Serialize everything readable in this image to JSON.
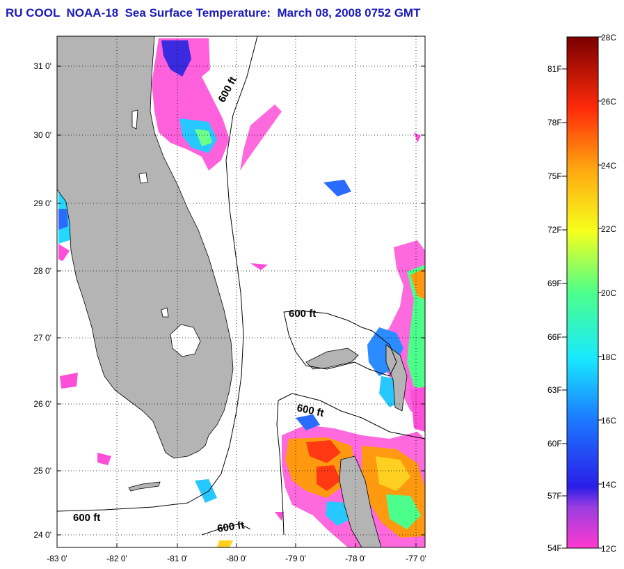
{
  "header": {
    "title": "RU COOL  NOAA-18  Sea Surface Temperature:  March 08, 2008 0752 GMT"
  },
  "map": {
    "lat_labels": [
      "31 0'",
      "30 0'",
      "29 0'",
      "28 0'",
      "27 0'",
      "26 0'",
      "25 0'",
      "24 0'"
    ],
    "lon_labels": [
      "-83 0'",
      "-82 0'",
      "-81 0'",
      "-80 0'",
      "-79 0'",
      "-78 0'",
      "-77 0'"
    ],
    "contour_label": "600 ft",
    "land_color": "#b4b4b4",
    "grid": "dotted"
  },
  "colorbar": {
    "fahrenheit_labels": [
      "81F",
      "78F",
      "75F",
      "72F",
      "69F",
      "66F",
      "63F",
      "60F",
      "57F",
      "54F"
    ],
    "celsius_labels": [
      "28C",
      "26C",
      "24C",
      "22C",
      "20C",
      "18C",
      "16C",
      "14C",
      "12C"
    ],
    "range_c": [
      12,
      28
    ],
    "range_f": [
      54,
      82
    ]
  }
}
